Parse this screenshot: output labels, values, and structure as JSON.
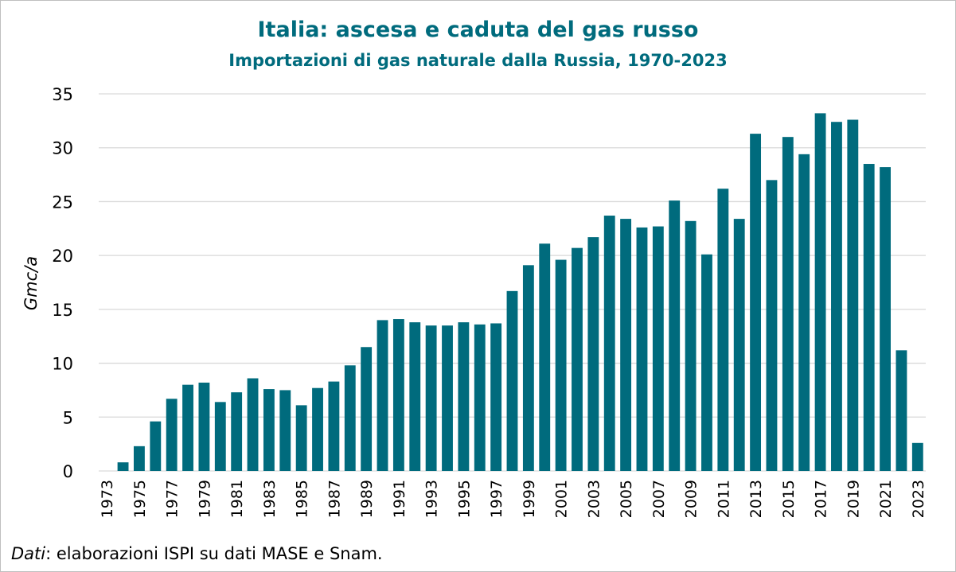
{
  "chart_data": {
    "type": "bar",
    "title": "Italia: ascesa e caduta del gas russo",
    "subtitle": "Importazioni di gas naturale dalla Russia, 1970-2023",
    "ylabel": "Gmc/a",
    "xlabel": "",
    "ylim": [
      0,
      35
    ],
    "yticks": [
      0,
      5,
      10,
      15,
      20,
      25,
      30,
      35
    ],
    "grid": true,
    "legend": "none",
    "bar_color": "#006b7d",
    "categories": [
      "1973",
      "1974",
      "1975",
      "1976",
      "1977",
      "1978",
      "1979",
      "1980",
      "1981",
      "1982",
      "1983",
      "1984",
      "1985",
      "1986",
      "1987",
      "1988",
      "1989",
      "1990",
      "1991",
      "1992",
      "1993",
      "1994",
      "1995",
      "1996",
      "1997",
      "1998",
      "1999",
      "2000",
      "2001",
      "2002",
      "2003",
      "2004",
      "2005",
      "2006",
      "2007",
      "2008",
      "2009",
      "2010",
      "2011",
      "2012",
      "2013",
      "2014",
      "2015",
      "2016",
      "2017",
      "2018",
      "2019",
      "2020",
      "2021",
      "2022",
      "2023"
    ],
    "tick_labels": [
      "1973",
      "1975",
      "1977",
      "1979",
      "1981",
      "1983",
      "1985",
      "1987",
      "1989",
      "1991",
      "1993",
      "1995",
      "1997",
      "1999",
      "2001",
      "2003",
      "2005",
      "2007",
      "2009",
      "2011",
      "2013",
      "2015",
      "2017",
      "2019",
      "2021",
      "2023"
    ],
    "values": [
      0,
      0.8,
      2.3,
      4.6,
      6.7,
      8.0,
      8.2,
      6.4,
      7.3,
      8.6,
      7.6,
      7.5,
      6.1,
      7.7,
      8.3,
      9.8,
      11.5,
      14.0,
      14.1,
      13.8,
      13.5,
      13.5,
      13.8,
      13.6,
      13.7,
      16.7,
      19.1,
      21.1,
      19.6,
      20.7,
      21.7,
      23.7,
      23.4,
      22.6,
      22.7,
      25.1,
      23.2,
      20.1,
      26.2,
      23.4,
      31.3,
      27.0,
      31.0,
      29.4,
      33.2,
      32.4,
      32.6,
      28.5,
      28.2,
      11.2,
      2.6
    ]
  },
  "source": {
    "lead": "Dati",
    "text": ": elaborazioni ISPI su dati MASE e Snam."
  }
}
